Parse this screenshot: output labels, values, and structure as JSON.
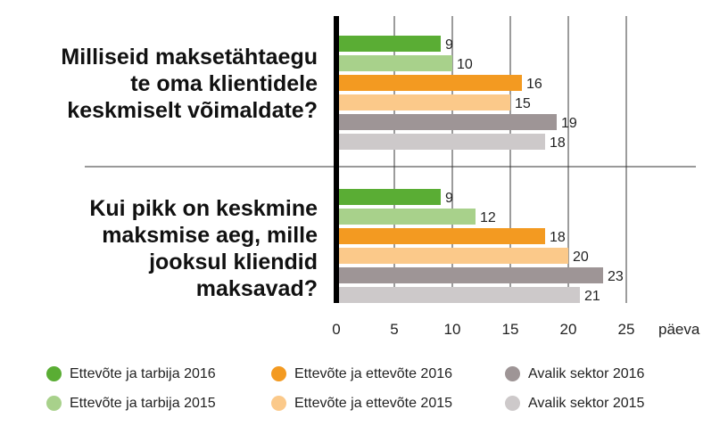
{
  "chart_data": {
    "type": "bar",
    "orientation": "horizontal",
    "categories": [
      "Milliseid maksetähtaegu te oma klientidele keskmiselt võimaldate?",
      "Kui pikk on keskmine maksmise aeg, mille jooksul kliendid maksavad?"
    ],
    "category_lines": [
      [
        "Milliseid maksetähtaegu",
        "te oma klientidele",
        "keskmiselt võimaldate?"
      ],
      [
        "Kui pikk on keskmine",
        "maksmise aeg, mille",
        "jooksul kliendid",
        "maksavad?"
      ]
    ],
    "series": [
      {
        "name": "Ettevõte ja tarbija 2016",
        "color": "#5aad34",
        "values": [
          9,
          9
        ]
      },
      {
        "name": "Ettevõte ja tarbija 2015",
        "color": "#a8d18b",
        "values": [
          10,
          12
        ]
      },
      {
        "name": "Ettevõte ja ettevõte 2016",
        "color": "#f39a21",
        "values": [
          16,
          18
        ]
      },
      {
        "name": "Ettevõte ja ettevõte 2015",
        "color": "#fbc98a",
        "values": [
          15,
          20
        ]
      },
      {
        "name": "Avalik sektor 2016",
        "color": "#9e9596",
        "values": [
          19,
          23
        ]
      },
      {
        "name": "Avalik sektor 2015",
        "color": "#cdc9ca",
        "values": [
          18,
          21
        ]
      }
    ],
    "x_ticks": [
      "0",
      "5",
      "10",
      "15",
      "20",
      "25"
    ],
    "xlabel": "päeva",
    "xlim": [
      0,
      30
    ],
    "grid": true,
    "legend_position": "bottom"
  },
  "legend_rows": [
    [
      {
        "label": "Ettevõte ja tarbija 2016",
        "color": "#5aad34"
      },
      {
        "label": "Ettevõte ja ettevõte 2016",
        "color": "#f39a21"
      },
      {
        "label": "Avalik sektor 2016",
        "color": "#9e9596"
      }
    ],
    [
      {
        "label": "Ettevõte ja tarbija 2015",
        "color": "#a8d18b"
      },
      {
        "label": "Ettevõte ja ettevõte 2015",
        "color": "#fbc98a"
      },
      {
        "label": "Avalik sektor 2015",
        "color": "#cdc9ca"
      }
    ]
  ]
}
